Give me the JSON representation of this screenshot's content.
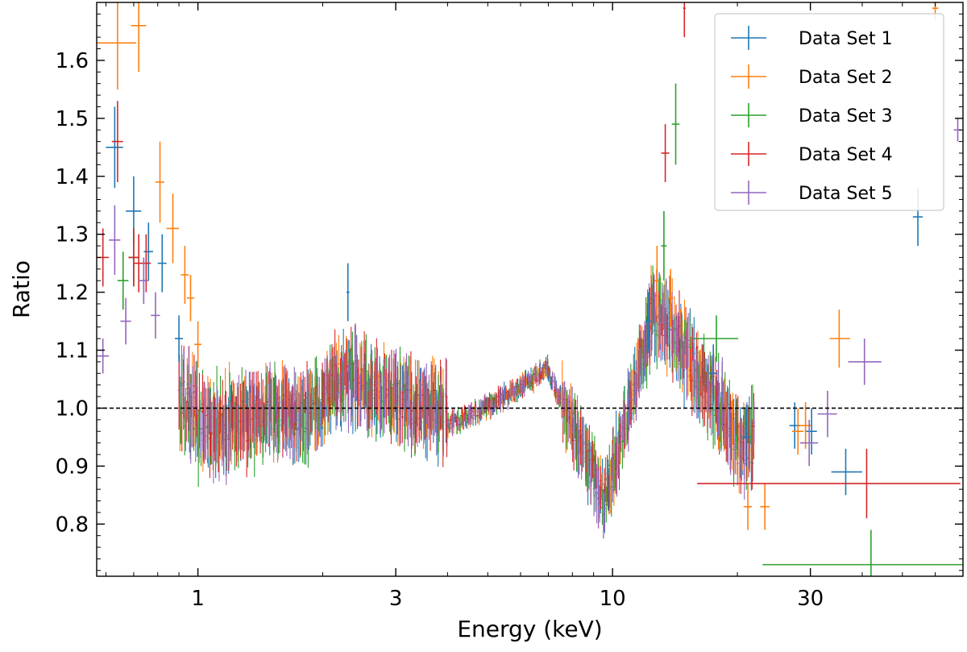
{
  "chart_data": {
    "type": "scatter",
    "xlabel": "Energy (keV)",
    "ylabel": "Ratio",
    "xscale": "log",
    "xlim": [
      0.57,
      70
    ],
    "ylim": [
      0.71,
      1.7
    ],
    "x_ticks": [
      1,
      3,
      10,
      30
    ],
    "x_tick_labels": [
      "1",
      "3",
      "10",
      "30"
    ],
    "y_ticks": [
      0.8,
      0.9,
      1.0,
      1.1,
      1.2,
      1.3,
      1.4,
      1.5,
      1.6
    ],
    "y_tick_labels": [
      "0.8",
      "0.9",
      "1.0",
      "1.1",
      "1.2",
      "1.3",
      "1.4",
      "1.5",
      "1.6"
    ],
    "reference_line": {
      "y": 1.0,
      "style": "dashed",
      "color": "#000000"
    },
    "legend": {
      "placement": "top-right"
    },
    "grid": false,
    "series": [
      {
        "name": "Data Set 1",
        "color": "#1f77b4",
        "points": [
          {
            "x": 0.63,
            "y": 1.45,
            "xerr": [
              0.03,
              0.03
            ],
            "yerr": 0.07
          },
          {
            "x": 0.7,
            "y": 1.34,
            "xerr": [
              0.03,
              0.03
            ],
            "yerr": 0.06
          },
          {
            "x": 0.76,
            "y": 1.27,
            "xerr": [
              0.02,
              0.02
            ],
            "yerr": 0.05
          },
          {
            "x": 0.82,
            "y": 1.25,
            "xerr": [
              0.02,
              0.02
            ],
            "yerr": 0.05
          },
          {
            "x": 0.9,
            "y": 1.12,
            "xerr": [
              0.02,
              0.02
            ],
            "yerr": 0.04
          },
          {
            "x": 2.3,
            "y": 1.2,
            "xerr": [
              0.02,
              0.02
            ],
            "yerr": 0.05
          },
          {
            "x": 12.2,
            "y": 1.15,
            "xerr": [
              0.2,
              0.2
            ],
            "yerr": 0.05
          },
          {
            "x": 17.5,
            "y": 1.06,
            "xerr": [
              0.4,
              0.4
            ],
            "yerr": 0.05
          },
          {
            "x": 21.0,
            "y": 0.95,
            "xerr": [
              0.5,
              0.5
            ],
            "yerr": 0.05
          },
          {
            "x": 27.5,
            "y": 0.97,
            "xerr": [
              0.8,
              0.8
            ],
            "yerr": 0.04
          },
          {
            "x": 30.2,
            "y": 0.96,
            "xerr": [
              0.9,
              0.9
            ],
            "yerr": 0.04
          },
          {
            "x": 36.5,
            "y": 0.89,
            "xerr": [
              2.8,
              3.5
            ],
            "yerr": 0.04
          },
          {
            "x": 54.5,
            "y": 1.33,
            "xerr": [
              1.5,
              1.5
            ],
            "yerr": 0.05
          }
        ]
      },
      {
        "name": "Data Set 2",
        "color": "#ff7f0e",
        "points": [
          {
            "x": 0.64,
            "y": 1.63,
            "xerr": [
              0.07,
              0.07
            ],
            "yerr": 0.08
          },
          {
            "x": 0.72,
            "y": 1.66,
            "xerr": [
              0.03,
              0.03
            ],
            "yerr": 0.08
          },
          {
            "x": 0.81,
            "y": 1.39,
            "xerr": [
              0.02,
              0.02
            ],
            "yerr": 0.07
          },
          {
            "x": 0.87,
            "y": 1.31,
            "xerr": [
              0.03,
              0.03
            ],
            "yerr": 0.06
          },
          {
            "x": 0.93,
            "y": 1.23,
            "xerr": [
              0.02,
              0.02
            ],
            "yerr": 0.05
          },
          {
            "x": 0.96,
            "y": 1.19,
            "xerr": [
              0.02,
              0.02
            ],
            "yerr": 0.04
          },
          {
            "x": 1.0,
            "y": 1.11,
            "xerr": [
              0.02,
              0.02
            ],
            "yerr": 0.04
          },
          {
            "x": 12.8,
            "y": 1.22,
            "xerr": [
              0.2,
              0.2
            ],
            "yerr": 0.06
          },
          {
            "x": 13.8,
            "y": 1.19,
            "xerr": [
              0.2,
              0.2
            ],
            "yerr": 0.05
          },
          {
            "x": 21.2,
            "y": 0.83,
            "xerr": [
              0.5,
              0.5
            ],
            "yerr": 0.04
          },
          {
            "x": 23.3,
            "y": 0.83,
            "xerr": [
              0.6,
              0.6
            ],
            "yerr": 0.04
          },
          {
            "x": 28.0,
            "y": 0.96,
            "xerr": [
              0.9,
              0.9
            ],
            "yerr": 0.04
          },
          {
            "x": 29.2,
            "y": 0.97,
            "xerr": [
              0.9,
              0.9
            ],
            "yerr": 0.04
          },
          {
            "x": 35.2,
            "y": 1.12,
            "xerr": [
              1.8,
              2.2
            ],
            "yerr": 0.05
          },
          {
            "x": 60.0,
            "y": 1.69,
            "xerr": [
              1.0,
              1.0
            ],
            "yerr": 0.02
          }
        ]
      },
      {
        "name": "Data Set 3",
        "color": "#2ca02c",
        "points": [
          {
            "x": 0.66,
            "y": 1.22,
            "xerr": [
              0.02,
              0.02
            ],
            "yerr": 0.05
          },
          {
            "x": 0.7,
            "y": 1.26,
            "xerr": [
              0.02,
              0.02
            ],
            "yerr": 0.05
          },
          {
            "x": 14.2,
            "y": 1.49,
            "xerr": [
              0.3,
              0.3
            ],
            "yerr": 0.07
          },
          {
            "x": 13.3,
            "y": 1.28,
            "xerr": [
              0.2,
              0.2
            ],
            "yerr": 0.06
          },
          {
            "x": 17.8,
            "y": 1.12,
            "xerr": [
              2.2,
              2.3
            ],
            "yerr": 0.04
          },
          {
            "x": 42.0,
            "y": 0.73,
            "xerr": [
              19.0,
              29.0
            ],
            "yerr": 0.06
          }
        ]
      },
      {
        "name": "Data Set 4",
        "color": "#d62728",
        "points": [
          {
            "x": 0.59,
            "y": 1.26,
            "xerr": [
              0.02,
              0.02
            ],
            "yerr": 0.05
          },
          {
            "x": 0.64,
            "y": 1.46,
            "xerr": [
              0.02,
              0.02
            ],
            "yerr": 0.07
          },
          {
            "x": 0.7,
            "y": 1.26,
            "xerr": [
              0.02,
              0.02
            ],
            "yerr": 0.05
          },
          {
            "x": 0.72,
            "y": 1.25,
            "xerr": [
              0.02,
              0.02
            ],
            "yerr": 0.05
          },
          {
            "x": 0.75,
            "y": 1.25,
            "xerr": [
              0.02,
              0.02
            ],
            "yerr": 0.05
          },
          {
            "x": 13.4,
            "y": 1.44,
            "xerr": [
              0.3,
              0.3
            ],
            "yerr": 0.05
          },
          {
            "x": 14.9,
            "y": 1.69,
            "xerr": [
              0.1,
              0.1
            ],
            "yerr": 0.05
          },
          {
            "x": 41.0,
            "y": 0.87,
            "xerr": [
              25.0,
              28.0
            ],
            "yerr": 0.06
          }
        ]
      },
      {
        "name": "Data Set 5",
        "color": "#9467bd",
        "points": [
          {
            "x": 0.59,
            "y": 1.09,
            "xerr": [
              0.02,
              0.02
            ],
            "yerr": 0.03
          },
          {
            "x": 0.63,
            "y": 1.29,
            "xerr": [
              0.02,
              0.02
            ],
            "yerr": 0.06
          },
          {
            "x": 0.67,
            "y": 1.15,
            "xerr": [
              0.02,
              0.02
            ],
            "yerr": 0.04
          },
          {
            "x": 0.74,
            "y": 1.22,
            "xerr": [
              0.02,
              0.02
            ],
            "yerr": 0.04
          },
          {
            "x": 0.79,
            "y": 1.16,
            "xerr": [
              0.02,
              0.02
            ],
            "yerr": 0.04
          },
          {
            "x": 29.8,
            "y": 0.94,
            "xerr": [
              1.5,
              1.5
            ],
            "yerr": 0.04
          },
          {
            "x": 33.0,
            "y": 0.99,
            "xerr": [
              1.8,
              1.8
            ],
            "yerr": 0.04
          },
          {
            "x": 40.5,
            "y": 1.08,
            "xerr": [
              3.5,
              4.0
            ],
            "yerr": 0.04
          },
          {
            "x": 68.0,
            "y": 1.48,
            "xerr": [
              1.5,
              1.5
            ],
            "yerr": 0.02
          }
        ]
      }
    ]
  }
}
